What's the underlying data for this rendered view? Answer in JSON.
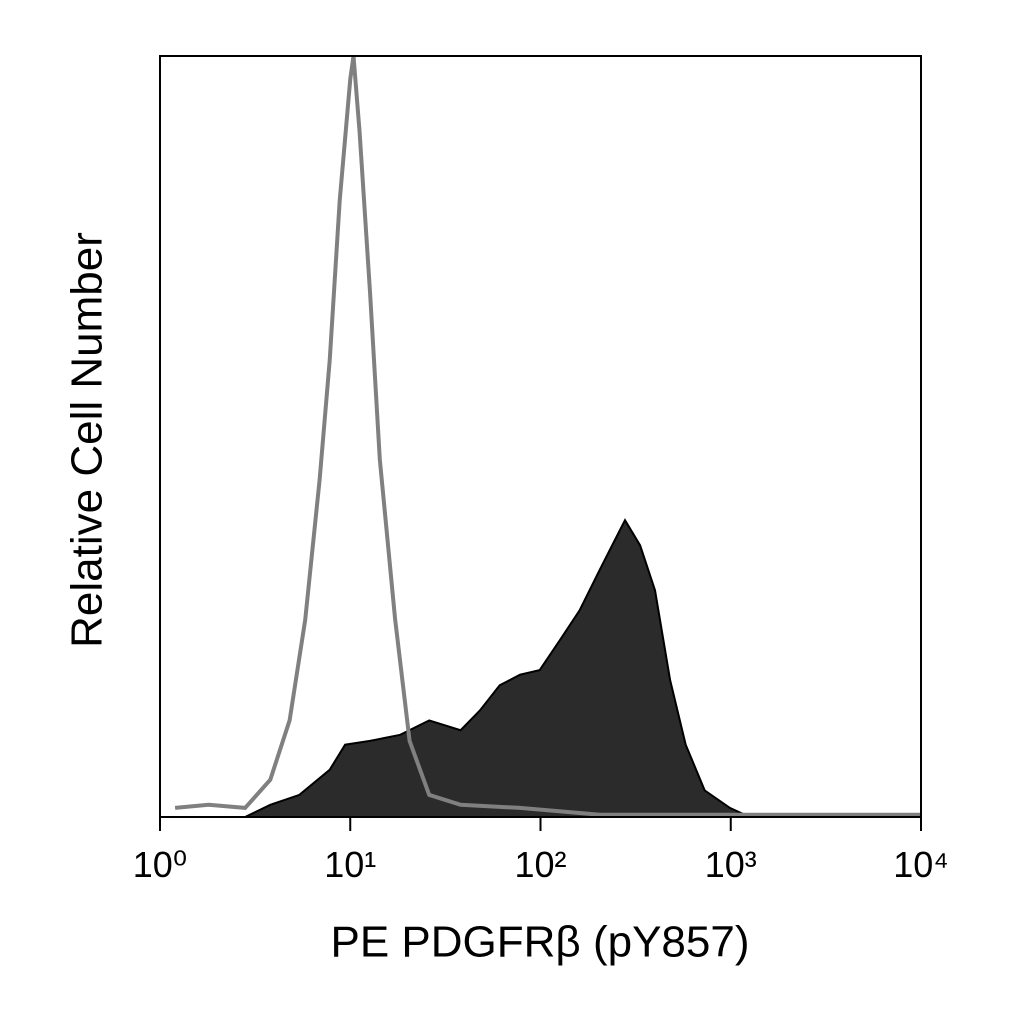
{
  "chart_data": {
    "type": "histogram-overlay",
    "x_label": "PE PDGFRβ (pY857)",
    "y_label": "Relative Cell Number",
    "xscale": "log",
    "xlim": [
      1,
      10000
    ],
    "ylim": [
      0,
      100
    ],
    "xticks": [
      {
        "value": 1,
        "label": "10⁰"
      },
      {
        "value": 10,
        "label": "10¹"
      },
      {
        "value": 100,
        "label": "10²"
      },
      {
        "value": 1000,
        "label": "10³"
      },
      {
        "value": 10000,
        "label": "10⁴"
      }
    ],
    "series": [
      {
        "color": "#2b2b2b",
        "fill": true,
        "x": [
          2.8,
          3.8,
          5.4,
          7.8,
          9.4,
          12.7,
          18.3,
          26,
          38,
          48,
          61,
          78,
          99,
          127,
          161,
          205,
          246,
          278,
          334,
          400,
          480,
          580,
          730,
          990,
          1260,
          10000
        ],
        "values": [
          0,
          1.6,
          2.9,
          6.2,
          9.5,
          10,
          10.8,
          12.7,
          11.4,
          14,
          17.3,
          18.7,
          19.3,
          23.3,
          27.2,
          32.5,
          36.4,
          39,
          35.7,
          29.8,
          18,
          9.5,
          3.5,
          1.2,
          0,
          0
        ]
      },
      {
        "color": "#808080",
        "fill": false,
        "x": [
          1.2,
          1.8,
          2.8,
          3.8,
          4.8,
          5.8,
          6.9,
          7.8,
          8.8,
          10,
          10.4,
          11.2,
          12.7,
          14.3,
          17.2,
          20.5,
          26,
          38,
          78,
          205,
          10000
        ],
        "values": [
          1.2,
          1.6,
          1.2,
          4.9,
          12.7,
          25.9,
          44.3,
          60,
          81,
          97,
          100,
          90,
          69,
          47,
          26,
          10,
          2.9,
          1.6,
          1.2,
          0.3,
          0.3
        ]
      }
    ]
  }
}
